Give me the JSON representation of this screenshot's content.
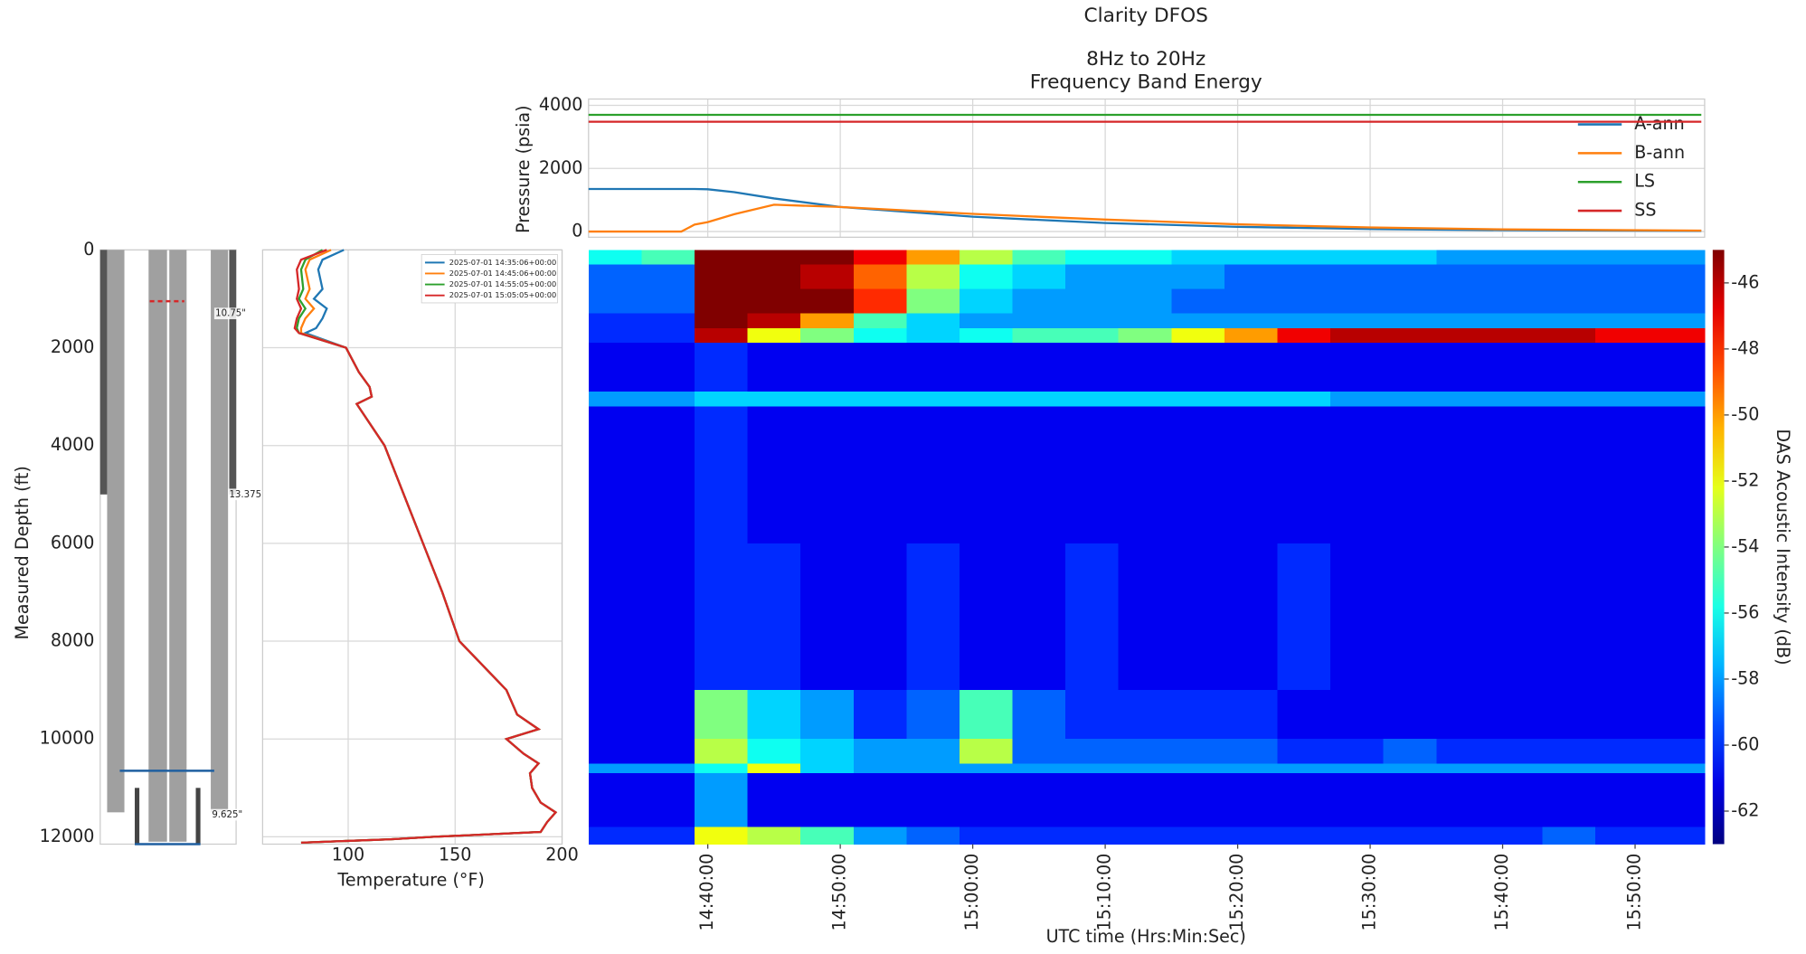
{
  "title": "Clarity DFOS",
  "chart_data": [
    {
      "type": "line",
      "title": "8Hz to 20Hz",
      "subtitle": "Frequency Band Energy",
      "y_label": "Pressure (psia)",
      "x": [
        "14:31:00",
        "14:38:00",
        "14:39:00",
        "14:40:00",
        "14:42:00",
        "14:45:00",
        "14:50:00",
        "15:00:00",
        "15:10:00",
        "15:20:00",
        "15:30:00",
        "15:40:00",
        "15:55:00"
      ],
      "xlim": [
        "14:31:00",
        "15:55:15"
      ],
      "xticks": [
        "14:40:00",
        "14:50:00",
        "15:00:00",
        "15:10:00",
        "15:20:00",
        "15:30:00",
        "15:40:00",
        "15:50:00"
      ],
      "ylim": [
        -180,
        4200
      ],
      "yticks": [
        0,
        2000,
        4000
      ],
      "grid": true,
      "legend": "upper right",
      "series": [
        {
          "name": "A-ann",
          "color": "#1f77b4",
          "values": [
            1350,
            1350,
            1350,
            1340,
            1250,
            1050,
            780,
            470,
            270,
            150,
            80,
            45,
            20
          ]
        },
        {
          "name": "B-ann",
          "color": "#ff7f0e",
          "values": [
            0,
            0,
            220,
            300,
            550,
            850,
            780,
            560,
            380,
            230,
            130,
            70,
            30
          ]
        },
        {
          "name": "LS",
          "color": "#2ca02c",
          "values": [
            3700,
            3700,
            3700,
            3700,
            3700,
            3700,
            3700,
            3700,
            3700,
            3700,
            3700,
            3700,
            3700
          ]
        },
        {
          "name": "SS",
          "color": "#d62728",
          "values": [
            3480,
            3480,
            3480,
            3480,
            3480,
            3480,
            3480,
            3480,
            3480,
            3480,
            3480,
            3480,
            3480
          ]
        }
      ]
    },
    {
      "type": "wellbore",
      "y_label": "Measured Depth (ft)",
      "ylim": [
        0,
        12150
      ],
      "yticks": [
        0,
        2000,
        4000,
        6000,
        8000,
        10000,
        12000
      ],
      "y_inverted": true,
      "strings": [
        {
          "top": 0,
          "bottom": 5000,
          "color": "#555555"
        },
        {
          "top": 0,
          "bottom": 11500,
          "color": "#a0a0a0"
        },
        {
          "top": 0,
          "bottom": 12100,
          "color": "#a0a0a0"
        },
        {
          "top": 11000,
          "bottom": 12150,
          "color": "#444444"
        }
      ],
      "markers": [
        {
          "depth": 10650,
          "color": "#1f5fa0",
          "linestyle": "solid"
        },
        {
          "depth": 1050,
          "color": "#d62728",
          "linestyle": "dashed"
        },
        {
          "depth": 12150,
          "color": "#1f5fa0",
          "linestyle": "solid"
        }
      ],
      "annotations": [
        {
          "text": "10.75\"",
          "depth": 1300
        },
        {
          "text": "13.375",
          "depth": 5000
        },
        {
          "text": "9.625\"",
          "depth": 11550
        }
      ]
    },
    {
      "type": "depth-line",
      "x_label": "Temperature (°F)",
      "xlim": [
        60,
        200
      ],
      "xticks": [
        100,
        150,
        200
      ],
      "ylim": [
        0,
        12150
      ],
      "yticks": [
        0,
        2000,
        4000,
        6000,
        8000,
        10000,
        12000
      ],
      "y_inverted": true,
      "grid": true,
      "legend": "upper right",
      "y": [
        0,
        200,
        400,
        800,
        1000,
        1200,
        1400,
        1600,
        1700,
        2000,
        2500,
        2800,
        3000,
        3150,
        4000,
        5000,
        6000,
        7000,
        8000,
        8500,
        9000,
        9500,
        9800,
        10000,
        10300,
        10500,
        10700,
        11000,
        11300,
        11500,
        11700,
        11900,
        12000,
        12050,
        12120
      ],
      "series": [
        {
          "name": "2025-07-01 14:35:06+00:00",
          "color": "#1f77b4",
          "values": [
            98,
            88,
            86,
            88,
            84,
            90,
            88,
            85,
            80,
            99,
            105,
            110,
            111,
            104,
            117,
            126,
            135,
            144,
            152,
            163,
            174,
            179,
            189,
            174,
            182,
            189,
            185,
            186,
            190,
            197,
            193,
            190,
            140,
            120,
            78
          ]
        },
        {
          "name": "2025-07-01 14:45:06+00:00",
          "color": "#ff7f0e",
          "values": [
            92,
            82,
            80,
            82,
            80,
            84,
            80,
            78,
            78,
            99,
            105,
            110,
            111,
            104,
            117,
            126,
            135,
            144,
            152,
            163,
            174,
            179,
            189,
            174,
            182,
            189,
            185,
            186,
            190,
            197,
            193,
            190,
            140,
            120,
            78
          ]
        },
        {
          "name": "2025-07-01 14:55:05+00:00",
          "color": "#2ca02c",
          "values": [
            88,
            80,
            78,
            79,
            77,
            80,
            77,
            76,
            77,
            99,
            105,
            110,
            111,
            104,
            117,
            126,
            135,
            144,
            152,
            163,
            174,
            179,
            189,
            174,
            182,
            189,
            185,
            186,
            190,
            197,
            193,
            190,
            140,
            120,
            78
          ]
        },
        {
          "name": "2025-07-01 15:05:05+00:00",
          "color": "#d62728",
          "values": [
            90,
            78,
            76,
            77,
            76,
            78,
            76,
            75,
            77,
            99,
            105,
            110,
            111,
            104,
            117,
            126,
            135,
            144,
            152,
            163,
            174,
            179,
            189,
            174,
            182,
            189,
            185,
            186,
            190,
            197,
            193,
            190,
            140,
            120,
            78
          ]
        }
      ]
    },
    {
      "type": "heatmap",
      "x_label": "UTC time (Hrs:Min:Sec)",
      "colorbar_label": "DAS Acoustic Intensity (dB)",
      "colormap": "jet",
      "xlim": [
        "14:31:00",
        "15:55:15"
      ],
      "xticks": [
        "14:40:00",
        "14:50:00",
        "15:00:00",
        "15:10:00",
        "15:20:00",
        "15:30:00",
        "15:40:00",
        "15:50:00"
      ],
      "ylim": [
        0,
        12150
      ],
      "y_inverted": true,
      "clim": [
        -63,
        -45
      ],
      "cticks": [
        -62,
        -60,
        -58,
        -56,
        -54,
        -52,
        -50,
        -48,
        -46
      ],
      "x_edges": [
        "14:31:00",
        "14:35:00",
        "14:39:00",
        "14:43:00",
        "14:47:00",
        "14:51:00",
        "14:55:00",
        "14:59:00",
        "15:03:00",
        "15:07:00",
        "15:11:00",
        "15:15:00",
        "15:19:00",
        "15:23:00",
        "15:27:00",
        "15:31:00",
        "15:35:00",
        "15:39:00",
        "15:43:00",
        "15:47:00",
        "15:51:00",
        "15:55:15"
      ],
      "y_edges": [
        0,
        300,
        800,
        1300,
        1600,
        1900,
        2900,
        3200,
        6000,
        9000,
        10000,
        10500,
        10700,
        11800,
        12150
      ],
      "values": [
        [
          -56,
          -55,
          -45,
          -45,
          -45,
          -47,
          -50,
          -53,
          -55,
          -56,
          -56,
          -57,
          -57,
          -57,
          -57,
          -57,
          -58,
          -58,
          -58,
          -58,
          -58
        ],
        [
          -59,
          -59,
          -45,
          -45,
          -46,
          -49,
          -53,
          -56,
          -57,
          -58,
          -58,
          -58,
          -59,
          -59,
          -59,
          -59,
          -59,
          -59,
          -59,
          -59,
          -59
        ],
        [
          -59,
          -59,
          -45,
          -45,
          -45,
          -48,
          -54,
          -57,
          -58,
          -58,
          -58,
          -59,
          -59,
          -59,
          -59,
          -59,
          -59,
          -59,
          -59,
          -59,
          -59
        ],
        [
          -60,
          -60,
          -45,
          -46,
          -50,
          -55,
          -57,
          -58,
          -58,
          -58,
          -58,
          -58,
          -58,
          -58,
          -58,
          -58,
          -58,
          -58,
          -58,
          -58,
          -58
        ],
        [
          -60,
          -60,
          -46,
          -52,
          -54,
          -56,
          -57,
          -56,
          -55,
          -55,
          -54,
          -52,
          -50,
          -47,
          -46,
          -46,
          -46,
          -46,
          -46,
          -47,
          -47
        ],
        [
          -61,
          -61,
          -60,
          -61,
          -61,
          -61,
          -61,
          -61,
          -61,
          -61,
          -61,
          -61,
          -61,
          -61,
          -61,
          -61,
          -61,
          -61,
          -61,
          -61,
          -61
        ],
        [
          -58,
          -58,
          -57,
          -57,
          -57,
          -57,
          -57,
          -57,
          -57,
          -57,
          -57,
          -57,
          -57,
          -57,
          -58,
          -58,
          -58,
          -58,
          -58,
          -58,
          -58
        ],
        [
          -61,
          -61,
          -60,
          -61,
          -61,
          -61,
          -61,
          -61,
          -61,
          -61,
          -61,
          -61,
          -61,
          -61,
          -61,
          -61,
          -61,
          -61,
          -61,
          -61,
          -61
        ],
        [
          -61,
          -61,
          -60,
          -60,
          -61,
          -61,
          -60,
          -61,
          -61,
          -60,
          -61,
          -61,
          -61,
          -60,
          -61,
          -61,
          -61,
          -61,
          -61,
          -61,
          -61
        ],
        [
          -61,
          -61,
          -54,
          -57,
          -58,
          -60,
          -59,
          -55,
          -59,
          -60,
          -60,
          -60,
          -60,
          -61,
          -61,
          -61,
          -61,
          -61,
          -61,
          -61,
          -61
        ],
        [
          -61,
          -61,
          -53,
          -56,
          -57,
          -58,
          -58,
          -53,
          -59,
          -59,
          -59,
          -59,
          -59,
          -60,
          -60,
          -59,
          -60,
          -60,
          -60,
          -60,
          -60
        ],
        [
          -58,
          -58,
          -56,
          -52,
          -57,
          -58,
          -58,
          -58,
          -58,
          -58,
          -58,
          -58,
          -58,
          -58,
          -58,
          -58,
          -58,
          -58,
          -58,
          -58,
          -58
        ],
        [
          -61,
          -61,
          -58,
          -61,
          -61,
          -61,
          -61,
          -61,
          -61,
          -61,
          -61,
          -61,
          -61,
          -61,
          -61,
          -61,
          -61,
          -61,
          -61,
          -61,
          -61
        ],
        [
          -60,
          -60,
          -52,
          -53,
          -55,
          -58,
          -59,
          -60,
          -60,
          -60,
          -60,
          -60,
          -60,
          -60,
          -60,
          -60,
          -60,
          -60,
          -59,
          -60,
          -60
        ]
      ]
    }
  ]
}
